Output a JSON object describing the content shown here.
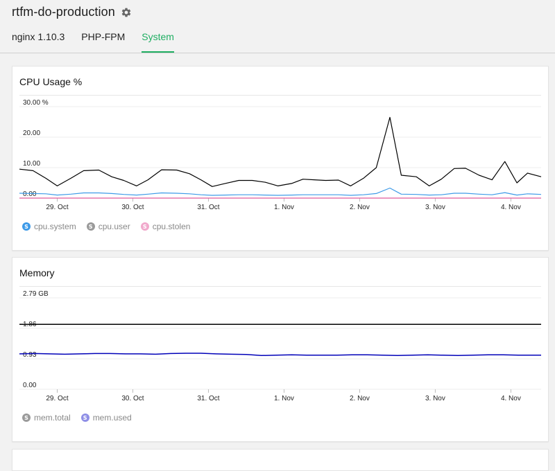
{
  "header": {
    "title": "rtfm-do-production",
    "settings_icon": "gear-icon",
    "tabs": [
      {
        "label": "nginx 1.10.3",
        "active": false
      },
      {
        "label": "PHP-FPM",
        "active": false
      },
      {
        "label": "System",
        "active": true
      }
    ]
  },
  "colors": {
    "accent": "#1fae62",
    "cpu_system": "#3d9ae8",
    "cpu_user": "#000000",
    "cpu_stolen": "#e05a9a",
    "mem_total": "#000000",
    "mem_used": "#0000b8"
  },
  "chart_data": [
    {
      "type": "line",
      "title": "CPU Usage %",
      "x_ticks": [
        "29. Oct",
        "30. Oct",
        "31. Oct",
        "1. Nov",
        "2. Nov",
        "3. Nov",
        "4. Nov"
      ],
      "y_ticks": [
        "0.00",
        "10.00",
        "20.00",
        "30.00 %"
      ],
      "ylim": [
        0,
        30
      ],
      "x_range": [
        28.5,
        35.4
      ],
      "legend": [
        {
          "name": "cpu.system",
          "symbol": "S",
          "color": "#3d9ae8"
        },
        {
          "name": "cpu.user",
          "symbol": "S",
          "color": "#9a9a9a"
        },
        {
          "name": "cpu.stolen",
          "symbol": "S",
          "color": "#f1a9cc"
        }
      ],
      "series": [
        {
          "name": "cpu.user",
          "color": "#000000",
          "x": [
            28.5,
            28.68,
            28.85,
            29.0,
            29.18,
            29.35,
            29.55,
            29.72,
            29.88,
            30.05,
            30.2,
            30.38,
            30.58,
            30.75,
            30.9,
            31.05,
            31.22,
            31.4,
            31.58,
            31.75,
            31.92,
            32.1,
            32.25,
            32.4,
            32.55,
            32.72,
            32.88,
            33.05,
            33.22,
            33.4,
            33.55,
            33.75,
            33.92,
            34.08,
            34.25,
            34.4,
            34.58,
            34.75,
            34.92,
            35.08,
            35.22,
            35.4
          ],
          "values": [
            9.5,
            9.0,
            6.5,
            4.0,
            6.5,
            9.0,
            9.2,
            7.0,
            5.8,
            4.0,
            6.0,
            9.3,
            9.2,
            8.0,
            6.0,
            3.8,
            4.8,
            5.8,
            5.8,
            5.2,
            4.0,
            4.8,
            6.2,
            6.0,
            5.8,
            5.9,
            4.0,
            6.5,
            10.0,
            26.5,
            7.5,
            7.0,
            4.0,
            6.2,
            9.7,
            9.8,
            7.5,
            6.0,
            12.0,
            5.0,
            8.2,
            7.0
          ]
        },
        {
          "name": "cpu.system",
          "color": "#3d9ae8",
          "x": [
            28.5,
            28.68,
            28.85,
            29.0,
            29.18,
            29.35,
            29.55,
            29.72,
            29.88,
            30.05,
            30.2,
            30.38,
            30.58,
            30.75,
            30.9,
            31.05,
            31.22,
            31.4,
            31.58,
            31.75,
            31.92,
            32.1,
            32.25,
            32.4,
            32.55,
            32.72,
            32.88,
            33.05,
            33.22,
            33.4,
            33.55,
            33.75,
            33.92,
            34.08,
            34.25,
            34.4,
            34.58,
            34.75,
            34.92,
            35.08,
            35.22,
            35.4
          ],
          "values": [
            1.6,
            1.5,
            1.4,
            1.0,
            1.3,
            1.7,
            1.7,
            1.5,
            1.2,
            1.0,
            1.3,
            1.7,
            1.6,
            1.4,
            1.1,
            0.9,
            1.0,
            1.1,
            1.1,
            1.0,
            0.9,
            1.0,
            1.1,
            1.1,
            1.1,
            1.1,
            0.9,
            1.1,
            1.5,
            3.3,
            1.3,
            1.2,
            1.0,
            1.1,
            1.6,
            1.6,
            1.3,
            1.1,
            1.8,
            1.0,
            1.4,
            1.2
          ]
        },
        {
          "name": "cpu.stolen",
          "color": "#e05a9a",
          "x": [
            28.5,
            35.4
          ],
          "values": [
            0.0,
            0.0
          ]
        }
      ]
    },
    {
      "type": "line",
      "title": "Memory",
      "x_ticks": [
        "29. Oct",
        "30. Oct",
        "31. Oct",
        "1. Nov",
        "2. Nov",
        "3. Nov",
        "4. Nov"
      ],
      "y_ticks": [
        "0.00",
        "0.93",
        "1.86",
        "2.79 GB"
      ],
      "ylim": [
        0,
        2.79
      ],
      "x_range": [
        28.5,
        35.4
      ],
      "legend": [
        {
          "name": "mem.total",
          "symbol": "S",
          "color": "#9a9a9a"
        },
        {
          "name": "mem.used",
          "symbol": "S",
          "color": "#8f8fe6"
        }
      ],
      "series": [
        {
          "name": "mem.total",
          "color": "#000000",
          "x": [
            28.5,
            35.4
          ],
          "values": [
            1.98,
            1.98
          ]
        },
        {
          "name": "mem.used",
          "color": "#0000b8",
          "x": [
            28.5,
            28.7,
            28.9,
            29.1,
            29.3,
            29.5,
            29.7,
            29.9,
            30.1,
            30.3,
            30.5,
            30.7,
            30.9,
            31.1,
            31.3,
            31.5,
            31.7,
            31.9,
            32.1,
            32.3,
            32.5,
            32.7,
            32.9,
            33.1,
            33.3,
            33.5,
            33.7,
            33.9,
            34.1,
            34.3,
            34.5,
            34.7,
            34.9,
            35.1,
            35.4
          ],
          "values": [
            1.08,
            1.09,
            1.08,
            1.07,
            1.08,
            1.09,
            1.09,
            1.08,
            1.08,
            1.07,
            1.09,
            1.1,
            1.1,
            1.08,
            1.07,
            1.06,
            1.03,
            1.04,
            1.05,
            1.04,
            1.04,
            1.04,
            1.05,
            1.05,
            1.04,
            1.03,
            1.04,
            1.05,
            1.04,
            1.03,
            1.04,
            1.05,
            1.05,
            1.04,
            1.04
          ]
        }
      ]
    }
  ]
}
